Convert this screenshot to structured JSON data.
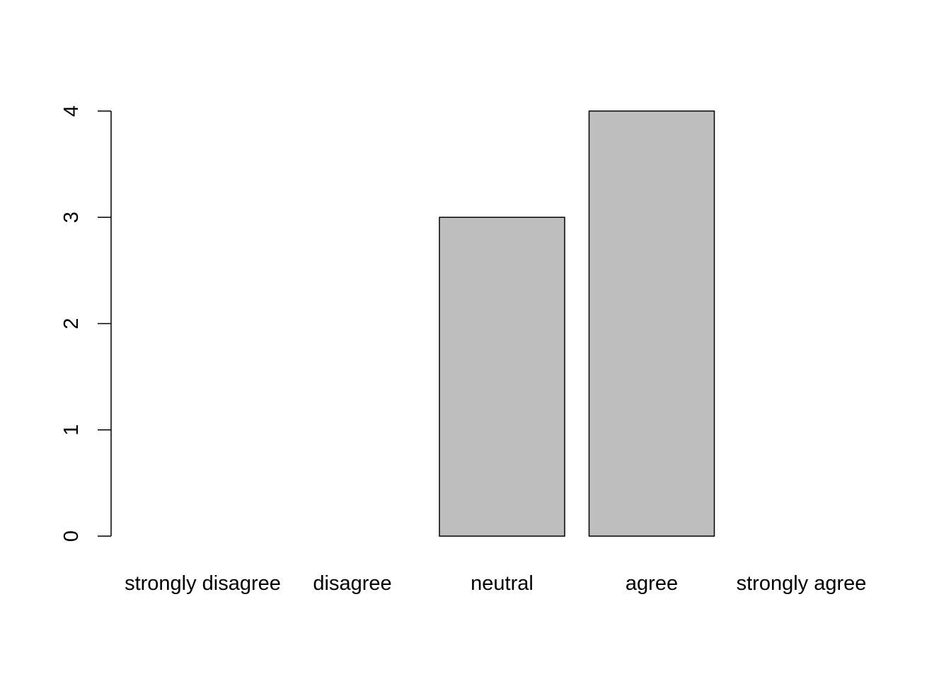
{
  "chart_data": {
    "type": "bar",
    "categories": [
      "strongly disagree",
      "disagree",
      "neutral",
      "agree",
      "strongly agree"
    ],
    "values": [
      0,
      0,
      3,
      4,
      0
    ],
    "ylim": [
      0,
      4
    ],
    "yticks": [
      0,
      1,
      2,
      3,
      4
    ],
    "ytick_labels": [
      "0",
      "1",
      "2",
      "3",
      "4"
    ],
    "title": "",
    "xlabel": "",
    "ylabel": "",
    "grid": false,
    "bar_color": "#bebebe",
    "bar_border_color": "#000000"
  }
}
